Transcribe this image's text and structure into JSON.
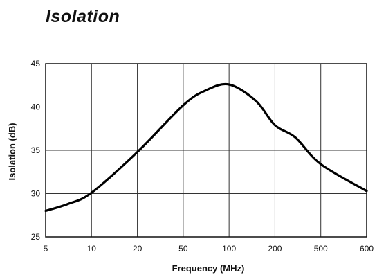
{
  "page": {
    "title": "Isolation"
  },
  "chart_data": {
    "type": "line",
    "title": "",
    "xlabel": "Frequency (MHz)",
    "ylabel": "Isolation (dB)",
    "x_ticks": [
      "5",
      "10",
      "20",
      "50",
      "100",
      "200",
      "500",
      "600"
    ],
    "y_ticks": [
      45,
      40,
      35,
      30,
      25
    ],
    "ylim": [
      25,
      45
    ],
    "grid": true,
    "legend": "none",
    "series_color": "#000000",
    "series": [
      {
        "x": [
          5,
          7,
          10,
          20,
          50,
          70,
          100,
          150,
          200,
          300,
          500,
          600
        ],
        "values": [
          28.0,
          28.8,
          30.1,
          34.8,
          40.2,
          41.9,
          42.6,
          40.7,
          37.9,
          36.5,
          33.4,
          30.3
        ]
      }
    ]
  }
}
